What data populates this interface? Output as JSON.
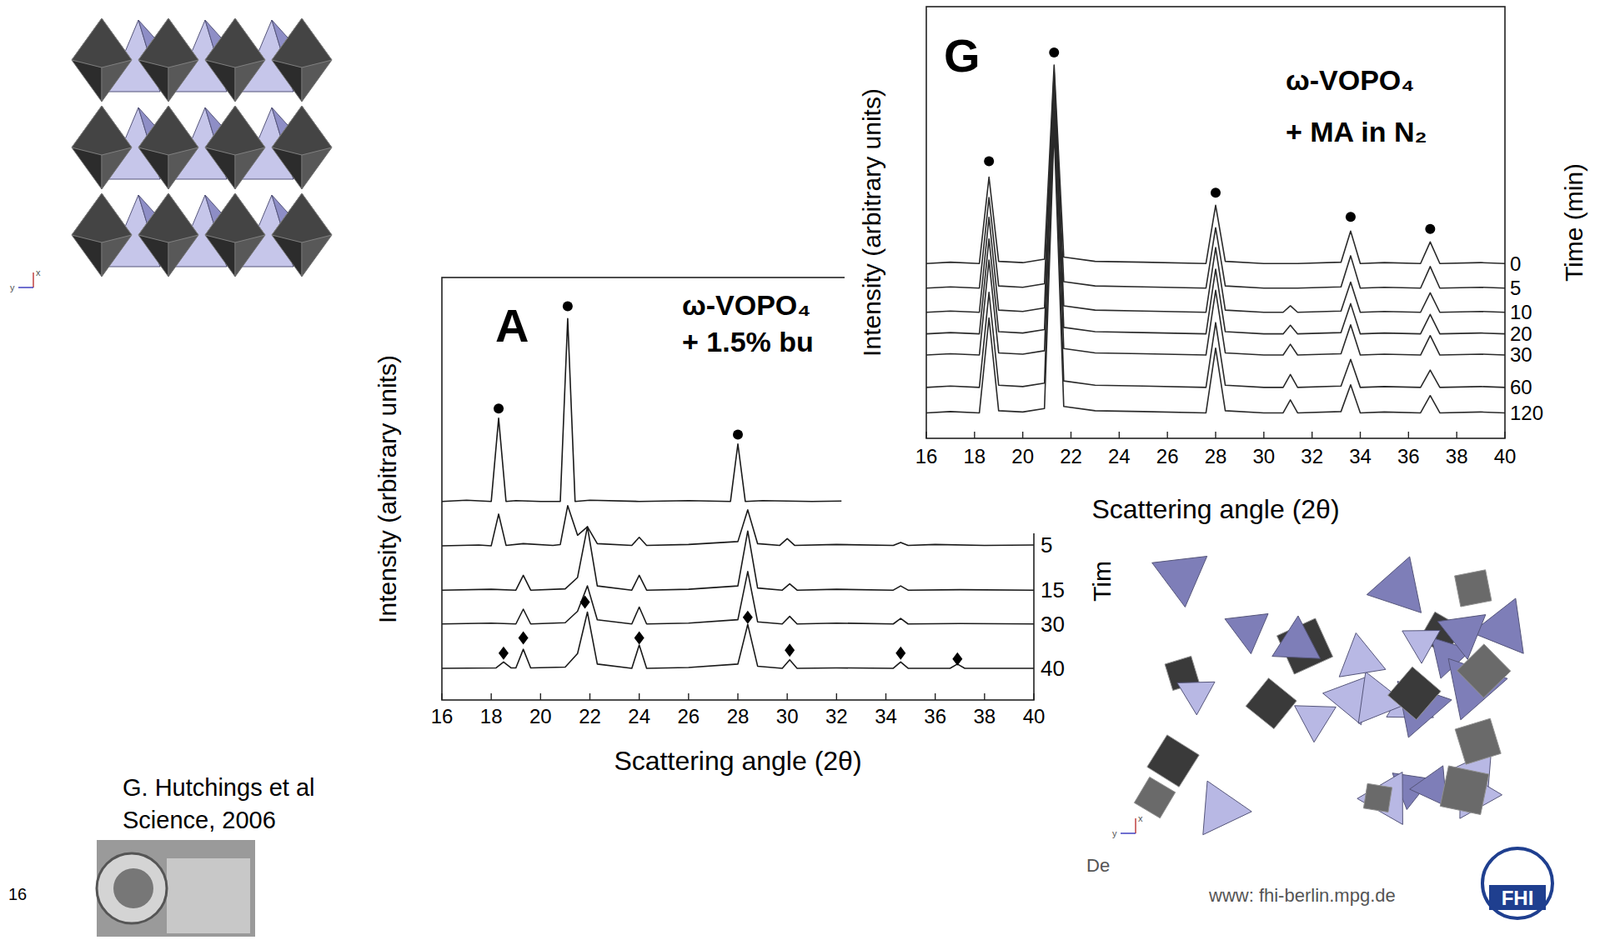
{
  "chart_data": [
    {
      "type": "line",
      "panel": "A",
      "title": "ω-VOPO₄",
      "subtitle": "+ 1.5% bu",
      "xlabel": "Scattering angle (2θ)",
      "ylabel": "Intensity (arbitrary units)",
      "series_label": "Tim",
      "xlim": [
        16,
        40
      ],
      "xticks": [
        16,
        18,
        20,
        22,
        24,
        26,
        28,
        30,
        32,
        34,
        36,
        38,
        40
      ],
      "ylim": [
        0,
        100
      ],
      "tick_labels": "x",
      "grid": false,
      "series": [
        {
          "color": "#1a1a1a",
          "line_style": "solid",
          "x": [
            16,
            17,
            18,
            18.3,
            18.6,
            19,
            20,
            20.8,
            21.1,
            21.4,
            22,
            24,
            26,
            27.7,
            28.0,
            28.3,
            29,
            31,
            32.2
          ],
          "values": [
            47,
            47.3,
            47,
            66.7,
            47,
            47.2,
            47,
            47,
            90.3,
            47,
            47.3,
            47,
            47.2,
            47,
            60.6,
            47,
            47.2,
            47,
            47.1
          ]
        },
        {
          "name": "5",
          "color": "#1a1a1a",
          "line_style": "solid",
          "x": [
            16,
            17.5,
            18,
            18.3,
            18.6,
            19.3,
            20.5,
            20.8,
            21.1,
            21.5,
            21.9,
            22.3,
            23.7,
            24.0,
            24.3,
            26,
            28.0,
            28.4,
            28.8,
            29.7,
            30.0,
            30.3,
            32,
            34.3,
            34.6,
            34.9,
            36,
            38,
            40
          ],
          "values": [
            36.5,
            36.7,
            36.5,
            44,
            36.6,
            37,
            36.6,
            36.8,
            46,
            39,
            41,
            37,
            36.6,
            38.5,
            36.6,
            36.8,
            37.5,
            45,
            37,
            36.6,
            38.2,
            36.6,
            36.8,
            36.6,
            37.3,
            36.6,
            36.8,
            36.6,
            36.7
          ]
        },
        {
          "name": "15",
          "color": "#1a1a1a",
          "line_style": "solid",
          "x": [
            16,
            18,
            19.0,
            19.3,
            19.6,
            21,
            21.5,
            21.9,
            22.3,
            23.7,
            24.0,
            24.3,
            26,
            28.0,
            28.4,
            28.8,
            29.8,
            30.1,
            30.4,
            32,
            34.3,
            34.6,
            34.9,
            37,
            40
          ],
          "values": [
            26,
            26.2,
            26,
            29.5,
            26,
            26.3,
            29,
            41,
            27,
            26,
            29.5,
            26,
            26.2,
            27,
            40,
            26.5,
            26,
            27.5,
            26,
            26.2,
            26,
            27,
            26,
            26.1,
            26
          ]
        },
        {
          "name": "30",
          "color": "#1a1a1a",
          "line_style": "solid",
          "x": [
            16,
            18,
            19.0,
            19.3,
            19.6,
            21,
            21.5,
            21.9,
            22.3,
            23.7,
            24.0,
            24.3,
            26,
            28.0,
            28.4,
            28.8,
            29.8,
            30.1,
            30.4,
            32,
            34.3,
            34.6,
            34.9,
            37,
            40
          ],
          "values": [
            18,
            18.2,
            18,
            21.5,
            18,
            18.3,
            21,
            27,
            19,
            18,
            22,
            18,
            18.2,
            19,
            30.4,
            18.5,
            18,
            19.8,
            18,
            18.2,
            18,
            19.3,
            18,
            18.1,
            18
          ]
        },
        {
          "name": "40",
          "color": "#1a1a1a",
          "line_style": "solid",
          "x": [
            16,
            18.2,
            18.5,
            18.8,
            19.0,
            19.3,
            19.6,
            21,
            21.5,
            21.9,
            22.3,
            23.7,
            24.0,
            24.3,
            26,
            28.0,
            28.4,
            28.8,
            29.8,
            30.1,
            30.4,
            32,
            34.3,
            34.6,
            34.9,
            36.6,
            36.9,
            37.2,
            40
          ],
          "values": [
            7.5,
            7.6,
            9,
            7.6,
            7.6,
            12,
            7.6,
            7.8,
            11,
            20.8,
            8.5,
            7.5,
            13,
            7.5,
            7.7,
            8.5,
            17.9,
            8,
            7.5,
            9.5,
            7.5,
            7.6,
            7.5,
            9,
            7.5,
            7.5,
            8.5,
            7.5,
            7.5
          ]
        },
        {
          "type": "scatter",
          "marker": "circle",
          "color": "#000000",
          "x": [
            18.3,
            21.1,
            28.0
          ],
          "values": [
            69,
            93.2,
            62.8
          ]
        },
        {
          "type": "scatter",
          "marker": "diamond",
          "color": "#000000",
          "x": [
            18.5,
            19.3,
            21.8,
            24.0,
            28.4,
            30.1,
            34.6,
            36.9
          ],
          "values": [
            11.1,
            14.7,
            23.2,
            14.7,
            19.6,
            11.8,
            11.1,
            9.7
          ]
        }
      ]
    },
    {
      "type": "line",
      "panel": "G",
      "title": "ω-VOPO₄",
      "subtitle": "+ MA in N₂",
      "xlabel": "Scattering angle (2θ)",
      "ylabel": "Intensity (arbitrary units)",
      "series_label": "Time (min)",
      "xlim": [
        16,
        40
      ],
      "xticks": [
        16,
        18,
        20,
        22,
        24,
        26,
        28,
        30,
        32,
        34,
        36,
        38,
        40
      ],
      "ylim": [
        0,
        100
      ],
      "tick_labels": "x",
      "grid": false,
      "x": [
        16,
        17,
        18.2,
        18.6,
        19.0,
        20,
        20.9,
        21.3,
        21.7,
        23,
        25,
        27.6,
        28.0,
        28.4,
        30,
        30.8,
        31.1,
        31.4,
        33.2,
        33.6,
        34.0,
        35,
        36.5,
        36.9,
        37.3,
        39,
        40
      ],
      "series": [
        {
          "name": "0",
          "color": "#2a2a2a",
          "line_style": "solid",
          "values": [
            40.5,
            40.8,
            40.5,
            60.5,
            41,
            40.7,
            41.5,
            86.5,
            42,
            41,
            40.8,
            40.5,
            54,
            41,
            40.5,
            40.5,
            40.5,
            40.5,
            40.8,
            48,
            40.5,
            40.7,
            40.5,
            45.5,
            40.5,
            40.7,
            40.5
          ]
        },
        {
          "name": "5",
          "color": "#2a2a2a",
          "line_style": "solid",
          "values": [
            34.8,
            35.1,
            34.8,
            55.8,
            35.3,
            35,
            35.8,
            84.8,
            36.3,
            35.3,
            35.1,
            34.8,
            48.8,
            35.3,
            34.8,
            34.8,
            34.8,
            34.8,
            35.1,
            42.3,
            34.8,
            35,
            34.8,
            39.8,
            34.8,
            35,
            34.8
          ]
        },
        {
          "name": "10",
          "color": "#2a2a2a",
          "line_style": "solid",
          "values": [
            29.2,
            29.5,
            29.2,
            51.2,
            29.7,
            29.4,
            30.2,
            83.2,
            30.7,
            29.7,
            29.5,
            29.2,
            44.2,
            29.7,
            29.2,
            29.2,
            30.7,
            29.2,
            29.5,
            36.2,
            29.2,
            29.4,
            29.2,
            33.7,
            29.2,
            29.4,
            29.2
          ]
        },
        {
          "name": "20",
          "color": "#2a2a2a",
          "line_style": "solid",
          "values": [
            24.2,
            24.5,
            24.2,
            46.2,
            24.7,
            24.4,
            25.2,
            82.2,
            25.7,
            24.7,
            24.5,
            24.2,
            39.2,
            24.7,
            24.2,
            24.2,
            26.2,
            24.2,
            24.5,
            31.2,
            24.2,
            24.4,
            24.2,
            28.7,
            24.2,
            24.4,
            24.2
          ]
        },
        {
          "name": "30",
          "color": "#2a2a2a",
          "line_style": "solid",
          "values": [
            19.3,
            19.6,
            19.3,
            41.3,
            19.8,
            19.5,
            20.3,
            80.3,
            20.8,
            19.8,
            19.6,
            19.3,
            34.3,
            19.8,
            19.3,
            19.3,
            21.8,
            19.3,
            19.6,
            26.3,
            19.3,
            19.5,
            19.3,
            23.8,
            19.3,
            19.5,
            19.3
          ]
        },
        {
          "name": "60",
          "color": "#2a2a2a",
          "line_style": "solid",
          "values": [
            11.8,
            12.1,
            11.8,
            33.8,
            12.3,
            12,
            12.8,
            75.8,
            13.3,
            12.3,
            12.1,
            11.8,
            26.8,
            12.3,
            11.8,
            11.8,
            14.8,
            11.8,
            12.1,
            18.3,
            11.8,
            12,
            11.8,
            15.8,
            11.8,
            12,
            11.8
          ]
        },
        {
          "name": "120",
          "color": "#2a2a2a",
          "line_style": "solid",
          "values": [
            5.9,
            6.2,
            5.9,
            27.9,
            6.4,
            6.1,
            6.9,
            71.9,
            7.4,
            6.4,
            6.2,
            5.9,
            20.9,
            6.4,
            5.9,
            5.9,
            8.9,
            5.9,
            6.2,
            12.4,
            5.9,
            6.1,
            5.9,
            9.9,
            5.9,
            6.1,
            5.9
          ]
        },
        {
          "type": "scatter",
          "marker": "circle",
          "color": "#000000",
          "x": [
            18.6,
            21.3,
            28.0,
            33.6,
            36.9
          ],
          "values": [
            64.2,
            89.4,
            56.9,
            51.3,
            48.5
          ]
        }
      ]
    }
  ],
  "slide": {
    "citation": [
      "G. Hutchings et al",
      "Science, 2006"
    ],
    "page_number": "16",
    "footer": "De",
    "url": "www: fhi-berlin.mpg.de",
    "logo_text": "FHI",
    "structure_axes": [
      "x",
      "y"
    ]
  }
}
